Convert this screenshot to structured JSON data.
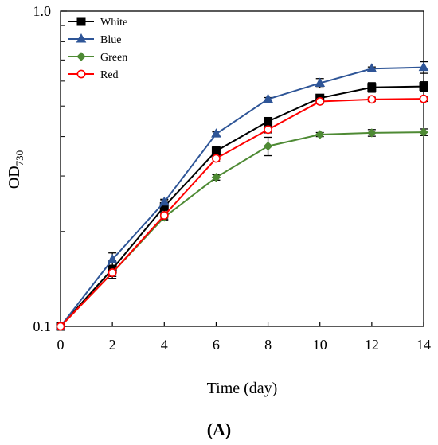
{
  "chart_data": {
    "type": "line",
    "panel_label": "(A)",
    "xlabel": "Time (day)",
    "ylabel": {
      "main": "OD",
      "subscript": "730"
    },
    "xlim": [
      0,
      14
    ],
    "ylim": [
      0.1,
      1.0
    ],
    "y_scale": "log",
    "x_ticks": [
      0,
      2,
      4,
      6,
      8,
      10,
      12,
      14
    ],
    "y_ticks": [
      {
        "value": 0.1,
        "label": "0.1"
      },
      {
        "value": 1.0,
        "label": "1.0"
      }
    ],
    "grid": false,
    "legend_position": "top-left",
    "x": [
      0,
      2,
      4,
      6,
      8,
      10,
      12,
      14
    ],
    "series": [
      {
        "name": "White",
        "color": "#000000",
        "marker": "square-filled",
        "values": [
          0.1,
          0.152,
          0.24,
          0.36,
          0.447,
          0.53,
          0.573,
          0.577
        ],
        "errors": [
          0,
          0.01,
          0.012,
          0.012,
          0.012,
          0.01,
          0.02,
          0.02
        ]
      },
      {
        "name": "Blue",
        "color": "#2e5597",
        "marker": "triangle-filled",
        "values": [
          0.1,
          0.163,
          0.248,
          0.408,
          0.526,
          0.591,
          0.657,
          0.663
        ],
        "errors": [
          0,
          0.008,
          0.005,
          0.006,
          0.006,
          0.02,
          0.008,
          0.028
        ]
      },
      {
        "name": "Green",
        "color": "#4e8a34",
        "marker": "diamond-filled",
        "values": [
          0.1,
          0.148,
          0.222,
          0.297,
          0.373,
          0.406,
          0.411,
          0.413
        ],
        "errors": [
          0,
          0.004,
          0.005,
          0.006,
          0.025,
          0.006,
          0.01,
          0.01
        ]
      },
      {
        "name": "Red",
        "color": "#ff0000",
        "marker": "circle-open",
        "values": [
          0.1,
          0.148,
          0.225,
          0.341,
          0.421,
          0.517,
          0.525,
          0.527
        ],
        "errors": [
          0,
          0.004,
          0.006,
          0.008,
          0.01,
          0.008,
          0.008,
          0.01
        ]
      }
    ]
  }
}
